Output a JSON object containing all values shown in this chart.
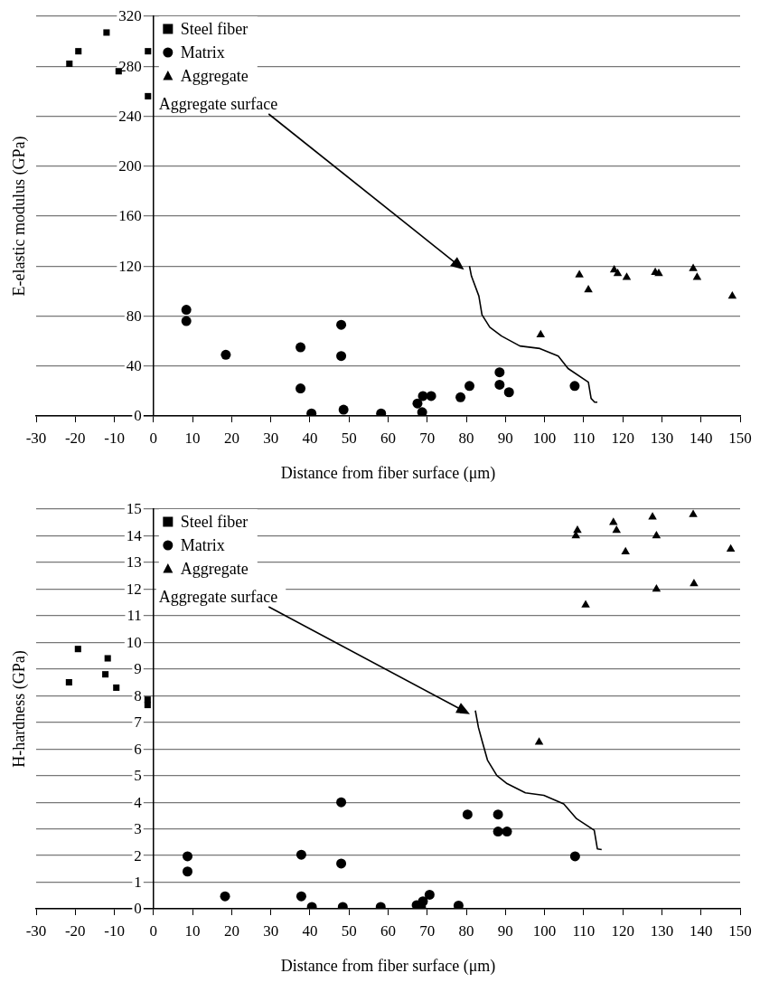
{
  "chart_data": [
    {
      "type": "scatter",
      "xlabel": "Distance from fiber surface (μm)",
      "ylabel": "E-elastic modulus (GPa)",
      "xlim": [
        -30,
        150
      ],
      "xticks": [
        -30,
        -20,
        -10,
        0,
        10,
        20,
        30,
        40,
        50,
        60,
        70,
        80,
        90,
        100,
        110,
        120,
        130,
        140,
        150
      ],
      "ylim": [
        0,
        320
      ],
      "yticks": [
        0,
        40,
        80,
        120,
        160,
        200,
        240,
        280,
        320
      ],
      "grid": "y",
      "legend": "top left",
      "annotations": [
        "Aggregate surface"
      ],
      "series": [
        {
          "name": "Steel fiber",
          "color": "#000000",
          "marker": "square",
          "x": [
            -21.5,
            -19.2,
            -12,
            -8.9,
            -1.4,
            -1.4
          ],
          "values": [
            282,
            292,
            307,
            276,
            292,
            256
          ]
        },
        {
          "name": "Matrix",
          "color": "#000000",
          "marker": "circle",
          "x": [
            8.4,
            8.4,
            18.5,
            37.6,
            37.6,
            40.4,
            48,
            48,
            48.6,
            58.2,
            67.5,
            68.9,
            71,
            68.7,
            78.5,
            80.8,
            88.5,
            88.5,
            90.9,
            107.7
          ],
          "values": [
            85,
            76,
            49,
            55,
            22,
            2,
            73,
            48,
            5,
            2,
            10,
            16,
            16,
            3,
            15,
            24,
            35,
            25,
            19,
            24
          ]
        },
        {
          "name": "Aggregate",
          "color": "#000000",
          "marker": "triangle",
          "x": [
            99,
            108.9,
            111.2,
            117.8,
            118.7,
            121,
            128.3,
            129.2,
            138,
            139,
            148
          ],
          "values": [
            65,
            113,
            101,
            117,
            114,
            111,
            115,
            114,
            118,
            111,
            96
          ]
        },
        {
          "type": "line",
          "color": "#000000",
          "marker": "none",
          "line_style": "solid",
          "x": [
            80.8,
            81.3,
            83.2,
            84,
            86,
            89,
            93.7,
            98.8,
            103.5,
            106,
            111.2,
            111.9,
            112.8,
            113.5
          ],
          "values": [
            120,
            112,
            96,
            81,
            71,
            64,
            56,
            54,
            48,
            38,
            27,
            14,
            11,
            11
          ]
        }
      ]
    },
    {
      "type": "scatter",
      "xlabel": "Distance from fiber surface (μm)",
      "ylabel": "H-hardness (GPa)",
      "xlim": [
        -30,
        150
      ],
      "xticks": [
        -30,
        -20,
        -10,
        0,
        10,
        20,
        30,
        40,
        50,
        60,
        70,
        80,
        90,
        100,
        110,
        120,
        130,
        140,
        150
      ],
      "ylim": [
        0,
        15
      ],
      "yticks": [
        0,
        1,
        2,
        3,
        4,
        5,
        6,
        7,
        8,
        9,
        10,
        11,
        12,
        13,
        14,
        15
      ],
      "grid": "y",
      "legend": "top left",
      "annotations": [
        "Aggregate surface"
      ],
      "series": [
        {
          "name": "Steel fiber",
          "color": "#000000",
          "marker": "square",
          "x": [
            -21.6,
            -19.3,
            -11.7,
            -12.3,
            -9.5,
            -1.5,
            -1.5
          ],
          "values": [
            8.5,
            9.75,
            9.4,
            8.8,
            8.3,
            7.85,
            7.65
          ]
        },
        {
          "name": "Matrix",
          "color": "#000000",
          "marker": "circle",
          "x": [
            8.7,
            8.7,
            18.3,
            37.8,
            37.8,
            40.5,
            48,
            48,
            48.4,
            58.1,
            67.3,
            68.4,
            68.9,
            70.6,
            78,
            80.3,
            88.1,
            88.1,
            90.4,
            107.8
          ],
          "values": [
            1.97,
            1.4,
            0.47,
            2.03,
            0.47,
            0.07,
            4.0,
            1.7,
            0.07,
            0.07,
            0.14,
            0.07,
            0.28,
            0.53,
            0.12,
            3.54,
            3.54,
            2.9,
            2.9,
            1.97
          ]
        },
        {
          "name": "Aggregate",
          "color": "#000000",
          "marker": "triangle",
          "x": [
            98.6,
            108,
            108.4,
            110.5,
            117.6,
            118.4,
            120.7,
            127.6,
            128.6,
            128.6,
            138,
            138.2,
            147.6
          ],
          "values": [
            6.25,
            14.0,
            14.2,
            11.4,
            14.5,
            14.2,
            13.4,
            14.7,
            14.0,
            12.0,
            14.8,
            12.2,
            13.5
          ]
        },
        {
          "type": "line",
          "color": "#000000",
          "marker": "none",
          "line_style": "solid",
          "x": [
            82.3,
            83.1,
            84.1,
            85.4,
            87.8,
            90.4,
            95.1,
            99.8,
            104.9,
            108.2,
            112.7,
            113.5,
            114.6
          ],
          "values": [
            7.44,
            6.8,
            6.26,
            5.58,
            5.0,
            4.7,
            4.35,
            4.26,
            3.94,
            3.38,
            2.95,
            2.25,
            2.22
          ]
        }
      ]
    }
  ]
}
